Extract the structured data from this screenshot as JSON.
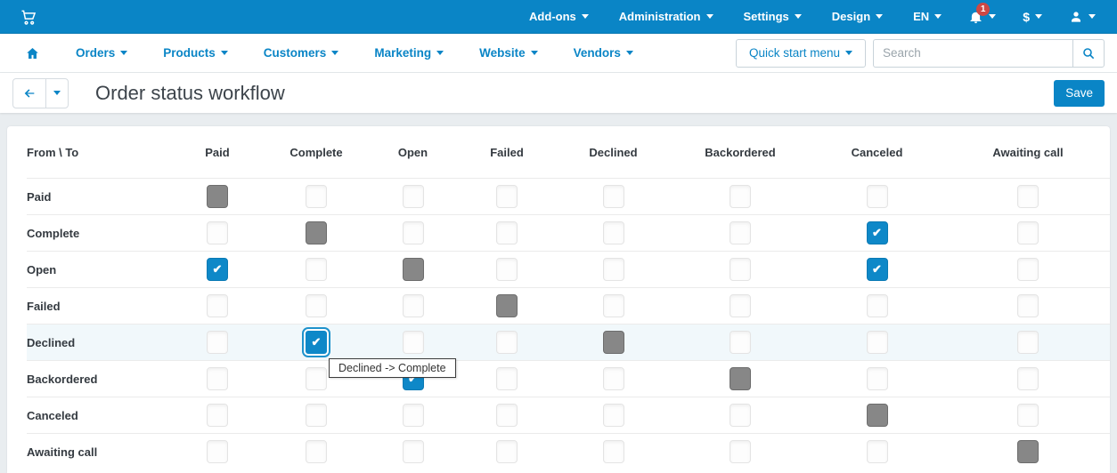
{
  "topbar": {
    "menus": [
      "Add-ons",
      "Administration",
      "Settings",
      "Design",
      "EN"
    ],
    "notification_count": "1",
    "currency_symbol": "$"
  },
  "nav": {
    "items": [
      "Orders",
      "Products",
      "Customers",
      "Marketing",
      "Website",
      "Vendors"
    ],
    "quick_start_label": "Quick start menu",
    "search_placeholder": "Search"
  },
  "header": {
    "title": "Order status workflow",
    "save_label": "Save"
  },
  "matrix": {
    "corner": "From \\ To",
    "columns": [
      "Paid",
      "Complete",
      "Open",
      "Failed",
      "Declined",
      "Backordered",
      "Canceled",
      "Awaiting call"
    ],
    "rows": [
      {
        "name": "Paid",
        "highlight": false,
        "cells": [
          "self",
          "empty",
          "empty",
          "empty",
          "empty",
          "empty",
          "empty",
          "empty"
        ]
      },
      {
        "name": "Complete",
        "highlight": false,
        "cells": [
          "empty",
          "self",
          "empty",
          "empty",
          "empty",
          "empty",
          "checked",
          "empty"
        ]
      },
      {
        "name": "Open",
        "highlight": false,
        "cells": [
          "checked",
          "empty",
          "self",
          "empty",
          "empty",
          "empty",
          "checked",
          "empty"
        ]
      },
      {
        "name": "Failed",
        "highlight": false,
        "cells": [
          "empty",
          "empty",
          "empty",
          "self",
          "empty",
          "empty",
          "empty",
          "empty"
        ]
      },
      {
        "name": "Declined",
        "highlight": true,
        "cells": [
          "empty",
          "checked-focused",
          "empty",
          "empty",
          "self",
          "empty",
          "empty",
          "empty"
        ]
      },
      {
        "name": "Backordered",
        "highlight": false,
        "cells": [
          "empty",
          "empty",
          "checked",
          "empty",
          "empty",
          "self",
          "empty",
          "empty"
        ]
      },
      {
        "name": "Canceled",
        "highlight": false,
        "cells": [
          "empty",
          "empty",
          "empty",
          "empty",
          "empty",
          "empty",
          "self",
          "empty"
        ]
      },
      {
        "name": "Awaiting call",
        "highlight": false,
        "cells": [
          "empty",
          "empty",
          "empty",
          "empty",
          "empty",
          "empty",
          "empty",
          "self"
        ]
      }
    ],
    "tooltip": {
      "text": "Declined -> Complete"
    }
  },
  "icons": {
    "check_glyph": "✔"
  },
  "colors": {
    "accent_blue": "#0a85c6",
    "checked_blue": "#0e88c8",
    "disabled_gray": "#878787",
    "badge_red": "#ce4844",
    "row_highlight": "#f1f8fb",
    "page_background": "#e9edf0"
  }
}
